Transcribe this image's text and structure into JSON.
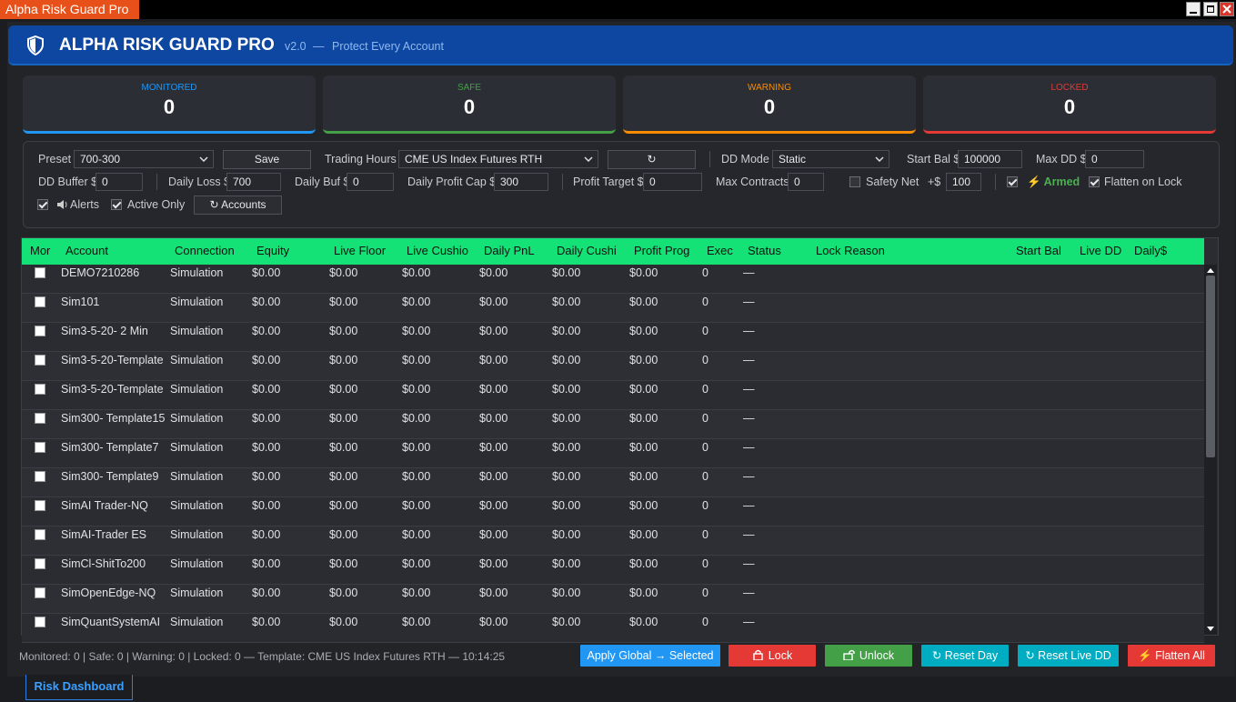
{
  "window": {
    "title": "Alpha Risk Guard Pro"
  },
  "header": {
    "title": "ALPHA RISK GUARD PRO",
    "version": "v2.0",
    "separator": "—",
    "tagline": "Protect Every Account"
  },
  "stats": [
    {
      "label": "MONITORED",
      "value": 0,
      "color": "#2196f3"
    },
    {
      "label": "SAFE",
      "value": 0,
      "color": "#43a047"
    },
    {
      "label": "WARNING",
      "value": 0,
      "color": "#fb8c00"
    },
    {
      "label": "LOCKED",
      "value": 0,
      "color": "#e53935"
    }
  ],
  "settings": {
    "preset": {
      "label": "Preset",
      "value": "700-300"
    },
    "save": "Save",
    "trading_hours": {
      "label": "Trading Hours",
      "value": "CME US Index Futures RTH"
    },
    "refresh": "↻",
    "dd_mode": {
      "label": "DD Mode",
      "value": "Static"
    },
    "start_bal": {
      "label": "Start Bal $",
      "value": 100000
    },
    "max_dd": {
      "label": "Max DD $",
      "value": 0
    },
    "dd_buffer": {
      "label": "DD Buffer $",
      "value": 0
    },
    "daily_loss": {
      "label": "Daily Loss $",
      "value": 700
    },
    "daily_buf": {
      "label": "Daily Buf $",
      "value": 0
    },
    "daily_profit_cap": {
      "label": "Daily Profit Cap $",
      "value": 300
    },
    "profit_target": {
      "label": "Profit Target $",
      "value": 0
    },
    "max_contracts": {
      "label": "Max Contracts",
      "value": 0
    },
    "safety_net": {
      "label": "Safety Net",
      "checked": false
    },
    "safety_amount": {
      "label": "+$",
      "value": 100
    },
    "armed": {
      "label": "⚡ Armed",
      "checked": true
    },
    "flatten_on_lock": {
      "label": "Flatten on Lock",
      "checked": true
    },
    "alerts": {
      "label": "Alerts",
      "checked": true
    },
    "active_only": {
      "label": "Active Only",
      "checked": true
    },
    "accounts": "↻ Accounts"
  },
  "table": {
    "columns": [
      "Mor",
      "Account",
      "Connection",
      "Equity",
      "Live Floor",
      "Live Cushio",
      "Daily PnL",
      "Daily Cushi",
      "Profit Prog",
      "Exec",
      "Status",
      "Lock Reason",
      "Start Bal",
      "Live DD",
      "Daily$"
    ],
    "rows": [
      [
        "DEMO7210286",
        "Simulation",
        "$0.00",
        "$0.00",
        "$0.00",
        "$0.00",
        "$0.00",
        "$0.00",
        0,
        "—"
      ],
      [
        "Sim101",
        "Simulation",
        "$0.00",
        "$0.00",
        "$0.00",
        "$0.00",
        "$0.00",
        "$0.00",
        0,
        "—"
      ],
      [
        "Sim3-5-20- 2 Min",
        "Simulation",
        "$0.00",
        "$0.00",
        "$0.00",
        "$0.00",
        "$0.00",
        "$0.00",
        0,
        "—"
      ],
      [
        "Sim3-5-20-Template",
        "Simulation",
        "$0.00",
        "$0.00",
        "$0.00",
        "$0.00",
        "$0.00",
        "$0.00",
        0,
        "—"
      ],
      [
        "Sim3-5-20-Template",
        "Simulation",
        "$0.00",
        "$0.00",
        "$0.00",
        "$0.00",
        "$0.00",
        "$0.00",
        0,
        "—"
      ],
      [
        "Sim300- Template15",
        "Simulation",
        "$0.00",
        "$0.00",
        "$0.00",
        "$0.00",
        "$0.00",
        "$0.00",
        0,
        "—"
      ],
      [
        "Sim300- Template7",
        "Simulation",
        "$0.00",
        "$0.00",
        "$0.00",
        "$0.00",
        "$0.00",
        "$0.00",
        0,
        "—"
      ],
      [
        "Sim300- Template9",
        "Simulation",
        "$0.00",
        "$0.00",
        "$0.00",
        "$0.00",
        "$0.00",
        "$0.00",
        0,
        "—"
      ],
      [
        "SimAI Trader-NQ",
        "Simulation",
        "$0.00",
        "$0.00",
        "$0.00",
        "$0.00",
        "$0.00",
        "$0.00",
        0,
        "—"
      ],
      [
        "SimAI-Trader ES",
        "Simulation",
        "$0.00",
        "$0.00",
        "$0.00",
        "$0.00",
        "$0.00",
        "$0.00",
        0,
        "—"
      ],
      [
        "SimCl-ShitTo200",
        "Simulation",
        "$0.00",
        "$0.00",
        "$0.00",
        "$0.00",
        "$0.00",
        "$0.00",
        0,
        "—"
      ],
      [
        "SimOpenEdge-NQ",
        "Simulation",
        "$0.00",
        "$0.00",
        "$0.00",
        "$0.00",
        "$0.00",
        "$0.00",
        0,
        "—"
      ],
      [
        "SimQuantSystemAI",
        "Simulation",
        "$0.00",
        "$0.00",
        "$0.00",
        "$0.00",
        "$0.00",
        "$0.00",
        0,
        "—"
      ]
    ]
  },
  "footer": {
    "status": "Monitored: 0 | Safe: 0 | Warning: 0 | Locked: 0  —  Template: CME US Index Futures RTH  —  10:14:25",
    "buttons": [
      {
        "label": "Apply Global → Selected",
        "color": "#2196f3"
      },
      {
        "label": "Lock",
        "color": "#e53935"
      },
      {
        "label": "Unlock",
        "color": "#43a047"
      },
      {
        "label": "↻ Reset Day",
        "color": "#00acc1"
      },
      {
        "label": "↻ Reset Live DD",
        "color": "#00acc1"
      },
      {
        "label": "⚡ Flatten All",
        "color": "#e53935"
      }
    ]
  },
  "tab": "Risk Dashboard"
}
